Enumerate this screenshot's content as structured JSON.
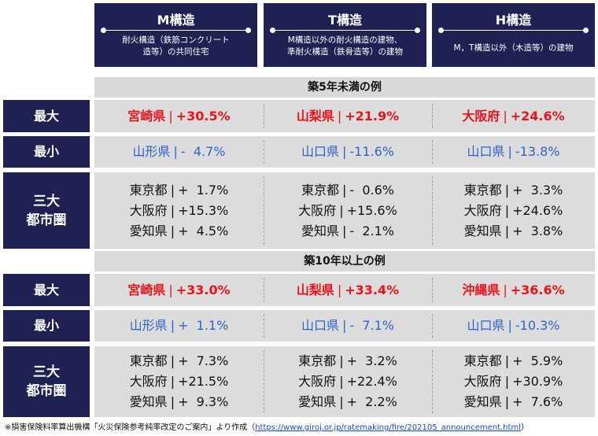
{
  "columns": [
    {
      "title": "M構造",
      "desc": [
        "耐火構造（鉄筋コンクリート",
        "造等）の共同住宅"
      ]
    },
    {
      "title": "T構造",
      "desc": [
        "M構造以外の耐火構造の建物、",
        "準耐火構造（鉄骨造等）の建物"
      ]
    },
    {
      "title": "H構造",
      "desc": [
        "M，T構造以外（木造等）の建物"
      ]
    }
  ],
  "sections": [
    {
      "title": "築5年未満の例",
      "max": {
        "label": "最大",
        "cells": [
          {
            "pref": "宮崎県",
            "val": "+30.5%"
          },
          {
            "pref": "山梨県",
            "val": "+21.9%"
          },
          {
            "pref": "大阪府",
            "val": "+24.6%"
          }
        ]
      },
      "min": {
        "label": "最小",
        "cells": [
          {
            "pref": "山形県",
            "val": "-  4.7%"
          },
          {
            "pref": "山口県",
            "val": "-11.6%"
          },
          {
            "pref": "山口県",
            "val": "-13.8%"
          }
        ]
      },
      "metro": {
        "label": [
          "三大",
          "都市圏"
        ],
        "cells": [
          [
            {
              "pref": "東京都",
              "val": "+  1.7%"
            },
            {
              "pref": "大阪府",
              "val": "+15.3%"
            },
            {
              "pref": "愛知県",
              "val": "+  4.5%"
            }
          ],
          [
            {
              "pref": "東京都",
              "val": "-  0.6%"
            },
            {
              "pref": "大阪府",
              "val": "+15.6%"
            },
            {
              "pref": "愛知県",
              "val": "-  2.1%"
            }
          ],
          [
            {
              "pref": "東京都",
              "val": "+  3.3%"
            },
            {
              "pref": "大阪府",
              "val": "+24.6%"
            },
            {
              "pref": "愛知県",
              "val": "+  3.8%"
            }
          ]
        ]
      }
    },
    {
      "title": "築10年以上の例",
      "max": {
        "label": "最大",
        "cells": [
          {
            "pref": "宮崎県",
            "val": "+33.0%"
          },
          {
            "pref": "山梨県",
            "val": "+33.4%"
          },
          {
            "pref": "沖縄県",
            "val": "+36.6%"
          }
        ]
      },
      "min": {
        "label": "最小",
        "cells": [
          {
            "pref": "山形県",
            "val": "+  1.1%"
          },
          {
            "pref": "山口県",
            "val": "-  7.1%"
          },
          {
            "pref": "山口県",
            "val": "-10.3%"
          }
        ]
      },
      "metro": {
        "label": [
          "三大",
          "都市圏"
        ],
        "cells": [
          [
            {
              "pref": "東京都",
              "val": "+  7.3%"
            },
            {
              "pref": "大阪府",
              "val": "+21.5%"
            },
            {
              "pref": "愛知県",
              "val": "+  9.3%"
            }
          ],
          [
            {
              "pref": "東京都",
              "val": "+  3.2%"
            },
            {
              "pref": "大阪府",
              "val": "+22.4%"
            },
            {
              "pref": "愛知県",
              "val": "+  2.2%"
            }
          ],
          [
            {
              "pref": "東京都",
              "val": "+  5.9%"
            },
            {
              "pref": "大阪府",
              "val": "+30.9%"
            },
            {
              "pref": "愛知県",
              "val": "+  7.6%"
            }
          ]
        ]
      }
    }
  ],
  "separator": "|",
  "footnote": {
    "text": "※損害保険料率算出機構「火災保険参考純率改定のご案内」より作成（",
    "link": "https://www.giroj.or.jp/ratemaking/fire/202105_announcement.html",
    "close": "）"
  },
  "colors": {
    "navy": "#1e2151",
    "red": "#e8141b",
    "blue": "#2f62c8",
    "gray": "#d9d9d9"
  }
}
